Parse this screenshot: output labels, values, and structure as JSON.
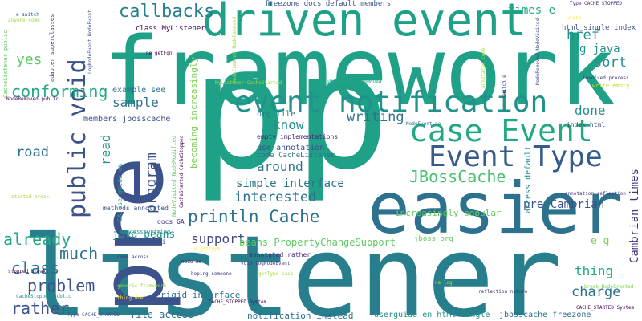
{
  "background": "#ffffff",
  "palette": {
    "purple": "#440154",
    "indigo": "#46337e",
    "blue": "#365c8d",
    "teal": "#277f8e",
    "green": "#1fa187",
    "lime": "#4ac16d",
    "yellowgreen": "#a0da39",
    "yellow": "#fde725"
  },
  "words": [
    {
      "text": "framework",
      "color": "#1fa187"
    },
    {
      "text": "listener",
      "color": "#277f8e"
    },
    {
      "text": "p",
      "color": "#1fa187"
    },
    {
      "text": "p",
      "color": "#1fa187"
    },
    {
      "text": "pre",
      "color": "#3b528b"
    },
    {
      "text": "easier",
      "color": "#2c728e"
    },
    {
      "text": "driven event",
      "color": "#1fa187"
    },
    {
      "text": "event notification",
      "color": "#21918c"
    },
    {
      "text": "Event Type",
      "color": "#365c8d"
    },
    {
      "text": "case Event",
      "color": "#22a884"
    },
    {
      "text": "public void",
      "color": "#3b528b"
    },
    {
      "text": "callbacks",
      "color": "#277f8e"
    },
    {
      "text": "conforming",
      "color": "#22a884"
    },
    {
      "text": "println Cache",
      "color": "#2c728e"
    },
    {
      "text": "JBossCache",
      "color": "#4ac16d"
    },
    {
      "text": "interested",
      "color": "#2c728e"
    },
    {
      "text": "problem",
      "color": "#3b528b"
    },
    {
      "text": "much",
      "color": "#2c728e"
    },
    {
      "text": "rather",
      "color": "#3b528b"
    },
    {
      "text": "already",
      "color": "#22a884"
    },
    {
      "text": "class",
      "color": "#2c728e"
    },
    {
      "text": "support",
      "color": "#414487"
    },
    {
      "text": "yes",
      "color": "#5ec962"
    },
    {
      "text": "sample",
      "color": "#2c728e"
    },
    {
      "text": "program",
      "color": "#3b528b"
    },
    {
      "text": "road",
      "color": "#2c728e"
    },
    {
      "text": "read",
      "color": "#21918c"
    },
    {
      "text": "know",
      "color": "#21918c"
    },
    {
      "text": "writing",
      "color": "#2c728e"
    },
    {
      "text": "done",
      "color": "#21918c"
    },
    {
      "text": "sort",
      "color": "#21918c"
    },
    {
      "text": "href",
      "color": "#21918c"
    },
    {
      "text": "charge",
      "color": "#2c728e"
    },
    {
      "text": "thing",
      "color": "#22a884"
    },
    {
      "text": "around",
      "color": "#2c728e"
    },
    {
      "text": "times e",
      "color": "#22a884"
    },
    {
      "text": "g java",
      "color": "#21918c"
    },
    {
      "text": "pre Cambrian",
      "color": "#3b528b"
    },
    {
      "text": "Cambrian times",
      "color": "#46337e"
    },
    {
      "text": "simple interface",
      "color": "#2c728e"
    },
    {
      "text": "java beans",
      "color": "#21918c"
    },
    {
      "text": "beans PropertyChangeSupport",
      "color": "#5ec962"
    },
    {
      "text": "e g",
      "color": "#7ad151"
    },
    {
      "text": "becoming increasingly",
      "color": "#7ad151"
    },
    {
      "text": "increasingly popular",
      "color": "#5ec962"
    },
    {
      "text": "use annotation",
      "color": "#3b528b"
    },
    {
      "text": "file access",
      "color": "#2c728e"
    },
    {
      "text": "notification instead",
      "color": "#2c728e"
    },
    {
      "text": "rigid interface",
      "color": "#2c728e"
    },
    {
      "text": "userguide_en html_single",
      "color": "#21918c"
    },
    {
      "text": "jbosscache freezone",
      "color": "#2c728e"
    },
    {
      "text": "jboss org",
      "color": "#5ec962"
    },
    {
      "text": "access default",
      "color": "#21918c"
    },
    {
      "text": "members jbosscache",
      "color": "#3b528b"
    },
    {
      "text": "example see",
      "color": "#2c728e"
    },
    {
      "text": "org file",
      "color": "#2c728e"
    },
    {
      "text": "code CacheListener",
      "color": "#2c728e"
    },
    {
      "text": "freezone docs default members",
      "color": "#3b528b"
    },
    {
      "text": "html_single index",
      "color": "#3b528b"
    },
    {
      "text": "index html",
      "color": "#3b528b"
    },
    {
      "text": "class MyListener",
      "color": "#440154"
    },
    {
      "text": "html api",
      "color": "#3b528b"
    },
    {
      "text": "methods annotated",
      "color": "#3b528b"
    },
    {
      "text": "process writing",
      "color": "#21918c"
    },
    {
      "text": "empty implementations",
      "color": "#482878"
    },
    {
      "text": "annotated rather",
      "color": "#472d7b"
    },
    {
      "text": "docs GA",
      "color": "#472d7b"
    },
    {
      "text": "CacheListener public",
      "color": "#5ec962"
    },
    {
      "text": "adapter superclasses",
      "color": "#46337e"
    },
    {
      "text": "anyone come",
      "color": "#a0da39"
    },
    {
      "text": "e switch",
      "color": "#3b528b"
    },
    {
      "text": "Type CACHE_STOPPED",
      "color": "#482878"
    },
    {
      "text": "LogNodeEvent NodeEvent",
      "color": "#3b528b"
    },
    {
      "text": "ne getFqn",
      "color": "#440154"
    },
    {
      "text": "MyListener CacheStarted",
      "color": "#a0da39"
    },
    {
      "text": "NodeRemoved NodeVisited",
      "color": "#3b528b"
    },
    {
      "text": "NodeModified NodeMoved",
      "color": "#22a884"
    },
    {
      "text": "involved process",
      "color": "#472d7b"
    },
    {
      "text": "write empty",
      "color": "#c8e020"
    },
    {
      "text": "NodeRemoved public",
      "color": "#440154"
    },
    {
      "text": "NodeEvent ne",
      "color": "#2c728e"
    },
    {
      "text": "NodeCreated NodeRemoved",
      "color": "#a0da39"
    },
    {
      "text": "started break",
      "color": "#a0da39"
    },
    {
      "text": "stopped break",
      "color": "#440154"
    },
    {
      "text": "CacheStopped public",
      "color": "#21918c"
    },
    {
      "text": "generic framework",
      "color": "#a0da39"
    },
    {
      "text": "thing due",
      "color": "#fde725"
    },
    {
      "text": "hoping someone",
      "color": "#472d7b"
    },
    {
      "text": "come across",
      "color": "#472d7b"
    },
    {
      "text": "node ne",
      "color": "#440154"
    },
    {
      "text": "void logNodeEvent",
      "color": "#46337e"
    },
    {
      "text": "getType case",
      "color": "#a0da39"
    },
    {
      "text": "CACHE_STOPPED System",
      "color": "#440154"
    },
    {
      "text": "Type CACHE_STARTED",
      "color": "#3b528b"
    },
    {
      "text": "CACHE_STARTED System",
      "color": "#440154"
    },
    {
      "text": "annotation reflection",
      "color": "#46337e"
    },
    {
      "text": "break NodeCreated",
      "color": "#7ad151"
    },
    {
      "text": "reflection nature",
      "color": "#46337e"
    },
    {
      "text": "ne log",
      "color": "#b5de2b"
    },
    {
      "text": "GA userguide_en",
      "color": "#1fa187"
    },
    {
      "text": "NodeVisited NodeModified",
      "color": "#5ec962"
    },
    {
      "text": "CacheStarted CacheStopped",
      "color": "#440154"
    },
    {
      "text": "e getType",
      "color": "#fde725"
    },
    {
      "text": "switch e",
      "color": "#472d7b"
    },
    {
      "text": "annotated code",
      "color": "#a0da39"
    },
    {
      "text": "write",
      "color": "#fde725"
    }
  ]
}
